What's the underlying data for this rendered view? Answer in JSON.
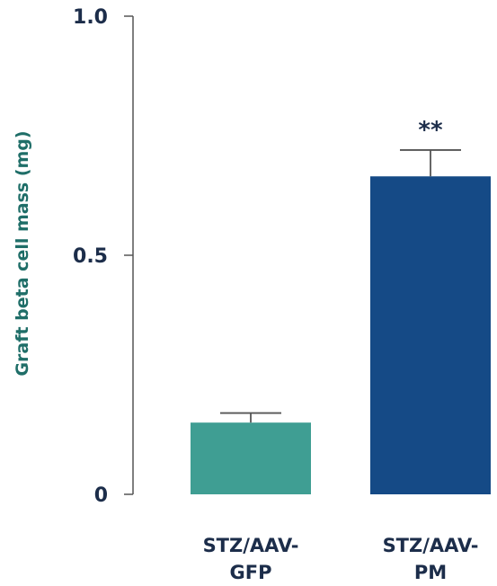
{
  "chart_data": {
    "type": "bar",
    "title": "",
    "xlabel": "",
    "ylabel": "Graft beta cell mass (mg)",
    "ylim": [
      0,
      1.0
    ],
    "yticks": [
      {
        "value": 0,
        "label": "0"
      },
      {
        "value": 0.5,
        "label": "0.5"
      },
      {
        "value": 1.0,
        "label": "1.0"
      }
    ],
    "categories": [
      {
        "line1": "STZ/AAV-",
        "line2": "GFP"
      },
      {
        "line1": "STZ/AAV-",
        "line2": "PM"
      }
    ],
    "values": [
      0.15,
      0.665
    ],
    "errors": [
      0.02,
      0.055
    ],
    "significance": [
      "",
      "**"
    ],
    "colors": [
      "#3f9e93",
      "#154a86"
    ],
    "grid": false,
    "legend": "none"
  }
}
